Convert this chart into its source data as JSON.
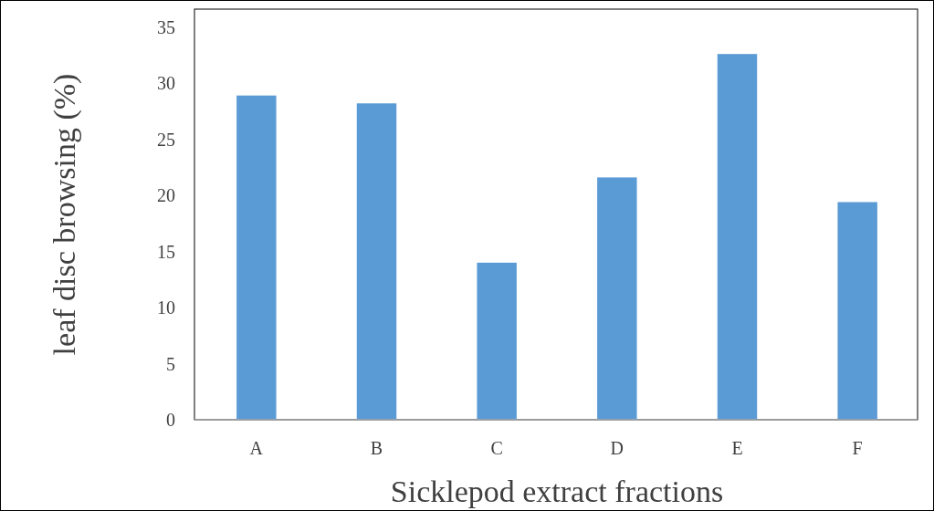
{
  "chart_data": {
    "type": "bar",
    "xlabel": "Sicklepod extract fractions",
    "ylabel": "leaf disc browsing (%)",
    "categories": [
      "A",
      "B",
      "C",
      "D",
      "E",
      "F"
    ],
    "values": [
      28.9,
      28.2,
      14.0,
      21.6,
      32.6,
      19.4
    ],
    "color": "#5b9bd5",
    "ylim": [
      0,
      36.6
    ],
    "yticks": [
      0,
      5,
      10,
      15,
      20,
      25,
      30,
      35
    ],
    "grid": false
  }
}
